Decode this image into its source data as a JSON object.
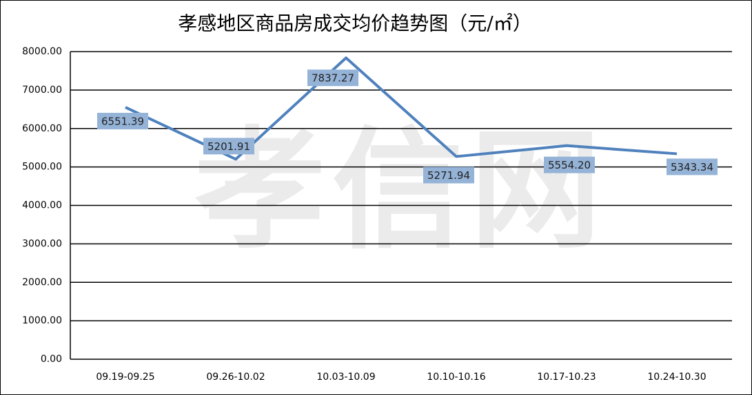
{
  "chart_data": {
    "type": "line",
    "title": "孝感地区商品房成交均价趋势图（元/㎡）",
    "watermark": "孝信网",
    "categories": [
      "09.19-09.25",
      "09.26-10.02",
      "10.03-10.09",
      "10.10-10.16",
      "10.17-10.23",
      "10.24-10.30"
    ],
    "series": [
      {
        "name": null,
        "color": "#4f81bd",
        "values": [
          6551.39,
          5201.91,
          7837.27,
          5271.94,
          5554.2,
          5343.34
        ],
        "value_labels": [
          "6551.39",
          "5201.91",
          "7837.27",
          "5271.94",
          "5554.20",
          "5343.34"
        ]
      }
    ],
    "ylim": [
      0,
      8000
    ],
    "yticks": [
      {
        "value": 0,
        "label": "0.00"
      },
      {
        "value": 1000,
        "label": "1000.00"
      },
      {
        "value": 2000,
        "label": "2000.00"
      },
      {
        "value": 3000,
        "label": "3000.00"
      },
      {
        "value": 4000,
        "label": "4000.00"
      },
      {
        "value": 5000,
        "label": "5000.00"
      },
      {
        "value": 6000,
        "label": "6000.00"
      },
      {
        "value": 7000,
        "label": "7000.00"
      },
      {
        "value": 8000,
        "label": "8000.00"
      }
    ],
    "grid": true
  }
}
